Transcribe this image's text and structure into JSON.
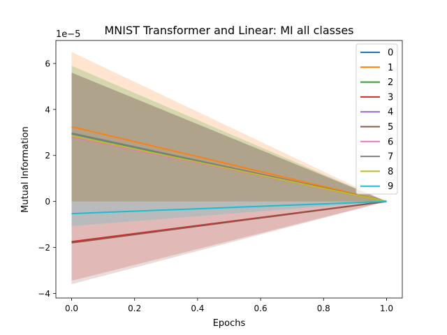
{
  "chart_data": {
    "type": "line",
    "title": "MNIST Transformer and Linear: MI all classes",
    "xlabel": "Epochs",
    "ylabel": "Mutual Information",
    "y_offset_text": "1e−5",
    "y_scale": 1e-05,
    "xlim": [
      -0.05,
      1.05
    ],
    "ylim": [
      -4.2,
      7.0
    ],
    "xticks": [
      0.0,
      0.2,
      0.4,
      0.6,
      0.8,
      1.0
    ],
    "xtick_labels": [
      "0.0",
      "0.2",
      "0.4",
      "0.6",
      "0.8",
      "1.0"
    ],
    "yticks": [
      -4,
      -2,
      0,
      2,
      4,
      6
    ],
    "ytick_labels": [
      "−4",
      "−2",
      "0",
      "2",
      "4",
      "6"
    ],
    "grid": false,
    "legend_position": "top-right",
    "x": [
      0.0,
      1.0
    ],
    "series": [
      {
        "name": "0",
        "color": "#1f77b4",
        "values": [
          2.95,
          0.0
        ],
        "band": [
          [
            0.0,
            5.6
          ],
          [
            0.0,
            0.0
          ]
        ]
      },
      {
        "name": "1",
        "color": "#ff7f0e",
        "values": [
          3.25,
          0.0
        ],
        "band": [
          [
            0.0,
            6.5
          ],
          [
            0.0,
            0.0
          ]
        ]
      },
      {
        "name": "2",
        "color": "#2ca02c",
        "values": [
          2.95,
          0.0
        ],
        "band": [
          [
            0.0,
            5.9
          ],
          [
            0.0,
            0.0
          ]
        ]
      },
      {
        "name": "3",
        "color": "#d62728",
        "values": [
          -1.75,
          0.0
        ],
        "band": [
          [
            -3.45,
            0.0
          ],
          [
            0.0,
            0.0
          ]
        ]
      },
      {
        "name": "4",
        "color": "#9467bd",
        "values": [
          2.85,
          0.0
        ],
        "band": [
          [
            0.0,
            5.6
          ],
          [
            0.0,
            0.0
          ]
        ]
      },
      {
        "name": "5",
        "color": "#8c564b",
        "values": [
          -1.8,
          0.0
        ],
        "band": [
          [
            -3.6,
            0.0
          ],
          [
            0.0,
            0.0
          ]
        ]
      },
      {
        "name": "6",
        "color": "#e377c2",
        "values": [
          2.8,
          0.0
        ],
        "band": [
          [
            0.0,
            5.6
          ],
          [
            0.0,
            0.0
          ]
        ]
      },
      {
        "name": "7",
        "color": "#7f7f7f",
        "values": [
          2.97,
          0.0
        ],
        "band": [
          [
            0.0,
            5.6
          ],
          [
            0.0,
            0.0
          ]
        ]
      },
      {
        "name": "8",
        "color": "#bcbd22",
        "values": [
          2.85,
          0.0
        ],
        "band": [
          [
            0.0,
            5.6
          ],
          [
            0.0,
            0.0
          ]
        ]
      },
      {
        "name": "9",
        "color": "#17becf",
        "values": [
          -0.53,
          0.0
        ],
        "band": [
          [
            -1.07,
            0.0
          ],
          [
            0.0,
            0.0
          ]
        ]
      }
    ]
  }
}
